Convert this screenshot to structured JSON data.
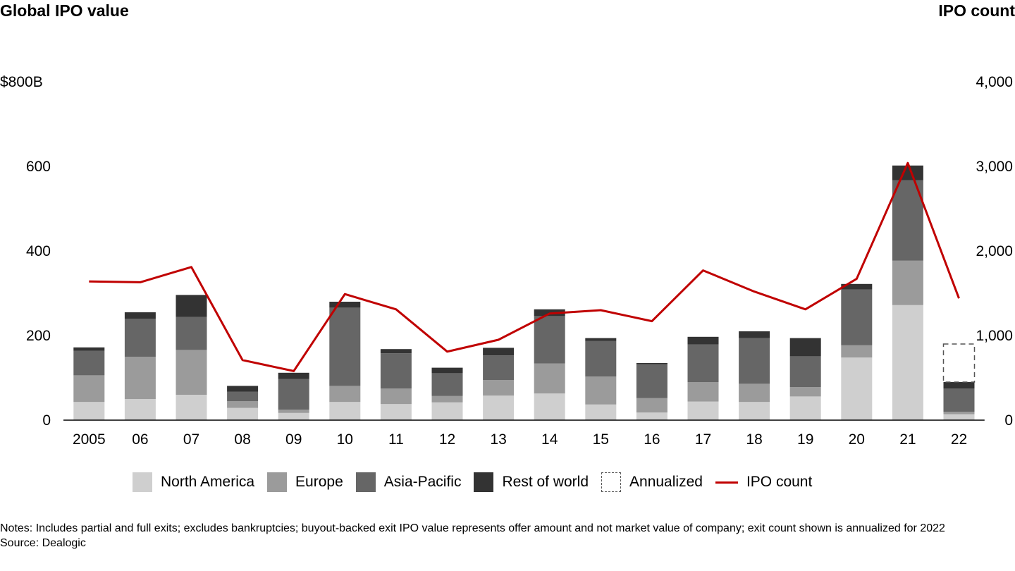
{
  "chart_data": {
    "type": "bar",
    "left_axis_title": "Global IPO value",
    "right_axis_title": "IPO count",
    "categories": [
      "2005",
      "06",
      "07",
      "08",
      "09",
      "10",
      "11",
      "12",
      "13",
      "14",
      "15",
      "16",
      "17",
      "18",
      "19",
      "20",
      "21",
      "22"
    ],
    "y_left": {
      "min": 0,
      "max": 800,
      "ticks": [
        "0",
        "200",
        "400",
        "600",
        "$800B"
      ]
    },
    "y_right": {
      "min": 0,
      "max": 4000,
      "ticks": [
        "0",
        "1,000",
        "2,000",
        "3,000",
        "4,000"
      ]
    },
    "series": [
      {
        "name": "North America",
        "color": "#cfcfcf",
        "values": [
          43,
          50,
          60,
          29,
          17,
          43,
          38,
          42,
          58,
          63,
          37,
          18,
          44,
          43,
          56,
          148,
          272,
          14
        ]
      },
      {
        "name": "Europe",
        "color": "#9b9b9b",
        "values": [
          63,
          100,
          106,
          16,
          8,
          38,
          37,
          15,
          37,
          71,
          66,
          34,
          46,
          43,
          22,
          29,
          105,
          6
        ]
      },
      {
        "name": "Asia-Pacific",
        "color": "#666666",
        "values": [
          58,
          90,
          78,
          22,
          72,
          185,
          83,
          54,
          58,
          112,
          84,
          80,
          89,
          108,
          73,
          132,
          190,
          55
        ]
      },
      {
        "name": "Rest of world",
        "color": "#333333",
        "values": [
          8,
          15,
          52,
          14,
          15,
          14,
          10,
          13,
          18,
          16,
          7,
          3,
          18,
          16,
          43,
          13,
          35,
          15
        ]
      }
    ],
    "annualized": {
      "name": "Annualized",
      "category": "22",
      "base": 90,
      "value": 90
    },
    "line": {
      "name": "IPO count",
      "color": "#c00000",
      "values": [
        1640,
        1630,
        1810,
        710,
        580,
        1490,
        1310,
        810,
        950,
        1260,
        1300,
        1170,
        1770,
        1520,
        1310,
        1670,
        3040,
        1440
      ]
    },
    "grid": false
  },
  "legend": [
    {
      "label": "North America",
      "kind": "fill",
      "color": "#cfcfcf"
    },
    {
      "label": "Europe",
      "kind": "fill",
      "color": "#9b9b9b"
    },
    {
      "label": "Asia-Pacific",
      "kind": "fill",
      "color": "#666666"
    },
    {
      "label": "Rest of world",
      "kind": "fill",
      "color": "#333333"
    },
    {
      "label": "Annualized",
      "kind": "dashed",
      "color": "#555555"
    },
    {
      "label": "IPO count",
      "kind": "line",
      "color": "#c00000"
    }
  ],
  "notes": {
    "line1": "Notes: Includes partial and full exits; excludes bankruptcies; buyout-backed exit IPO value represents offer amount and not market value of company; exit count shown is annualized for 2022",
    "line2": "Source: Dealogic"
  }
}
